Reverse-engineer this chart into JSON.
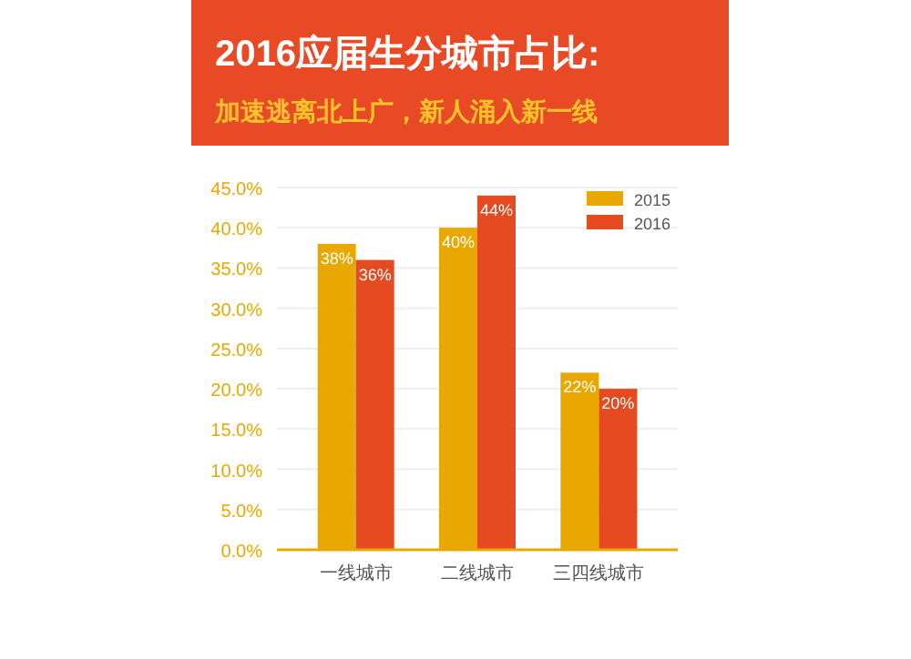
{
  "chart_data": {
    "type": "bar",
    "title": "2016应届生分城市占比:",
    "subtitle": "加速逃离北上广，新人涌入新一线",
    "categories": [
      "一线城市",
      "二线城市",
      "三四线城市"
    ],
    "series": [
      {
        "name": "2015",
        "color": "#e8a800",
        "values": [
          38,
          40,
          22
        ],
        "value_labels": [
          "38%",
          "40%",
          "22%"
        ]
      },
      {
        "name": "2016",
        "color": "#e64a20",
        "values": [
          36,
          44,
          20
        ],
        "value_labels": [
          "36%",
          "44%",
          "20%"
        ]
      }
    ],
    "ylim": [
      0,
      45
    ],
    "yticks": [
      {
        "value": 0,
        "label": "0.0%"
      },
      {
        "value": 5,
        "label": "5.0%"
      },
      {
        "value": 10,
        "label": "10.0%"
      },
      {
        "value": 15,
        "label": "15.0%"
      },
      {
        "value": 20,
        "label": "20.0%"
      },
      {
        "value": 25,
        "label": "25.0%"
      },
      {
        "value": 30,
        "label": "30.0%"
      },
      {
        "value": 35,
        "label": "35.0%"
      },
      {
        "value": 40,
        "label": "40.0%"
      },
      {
        "value": 45,
        "label": "45.0%"
      }
    ],
    "grid": "y",
    "legend": "top right"
  }
}
